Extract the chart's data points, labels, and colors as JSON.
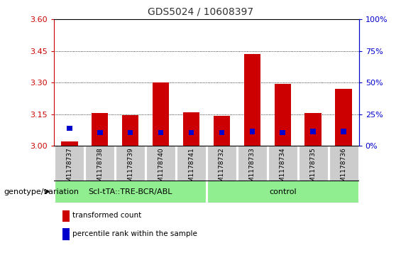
{
  "title": "GDS5024 / 10608397",
  "samples": [
    "GSM1178737",
    "GSM1178738",
    "GSM1178739",
    "GSM1178740",
    "GSM1178741",
    "GSM1178732",
    "GSM1178733",
    "GSM1178734",
    "GSM1178735",
    "GSM1178736"
  ],
  "red_values": [
    3.02,
    3.155,
    3.145,
    3.3,
    3.16,
    3.143,
    3.435,
    3.295,
    3.155,
    3.27
  ],
  "blue_values": [
    3.07,
    3.05,
    3.05,
    3.05,
    3.05,
    3.05,
    3.055,
    3.05,
    3.055,
    3.055
  ],
  "baseline": 3.0,
  "ylim_left": [
    3.0,
    3.6
  ],
  "yticks_left": [
    3.0,
    3.15,
    3.3,
    3.45,
    3.6
  ],
  "yticks_right": [
    0,
    25,
    50,
    75,
    100
  ],
  "ylim_right": [
    0,
    100
  ],
  "red_color": "#cc0000",
  "blue_color": "#0000cc",
  "bar_width": 0.55,
  "group1_label": "Scl-tTA::TRE-BCR/ABL",
  "group2_label": "control",
  "group1_count": 5,
  "group2_count": 5,
  "group_bg_color": "#90ee90",
  "sample_bg_color": "#cccccc",
  "legend_red": "transformed count",
  "legend_blue": "percentile rank within the sample",
  "genotype_label": "genotype/variation",
  "title_color": "#333333",
  "left_axis_color": "#cc0000",
  "right_axis_color": "#0000cc",
  "blue_bar_width": 0.18,
  "blue_bar_height": 0.025
}
